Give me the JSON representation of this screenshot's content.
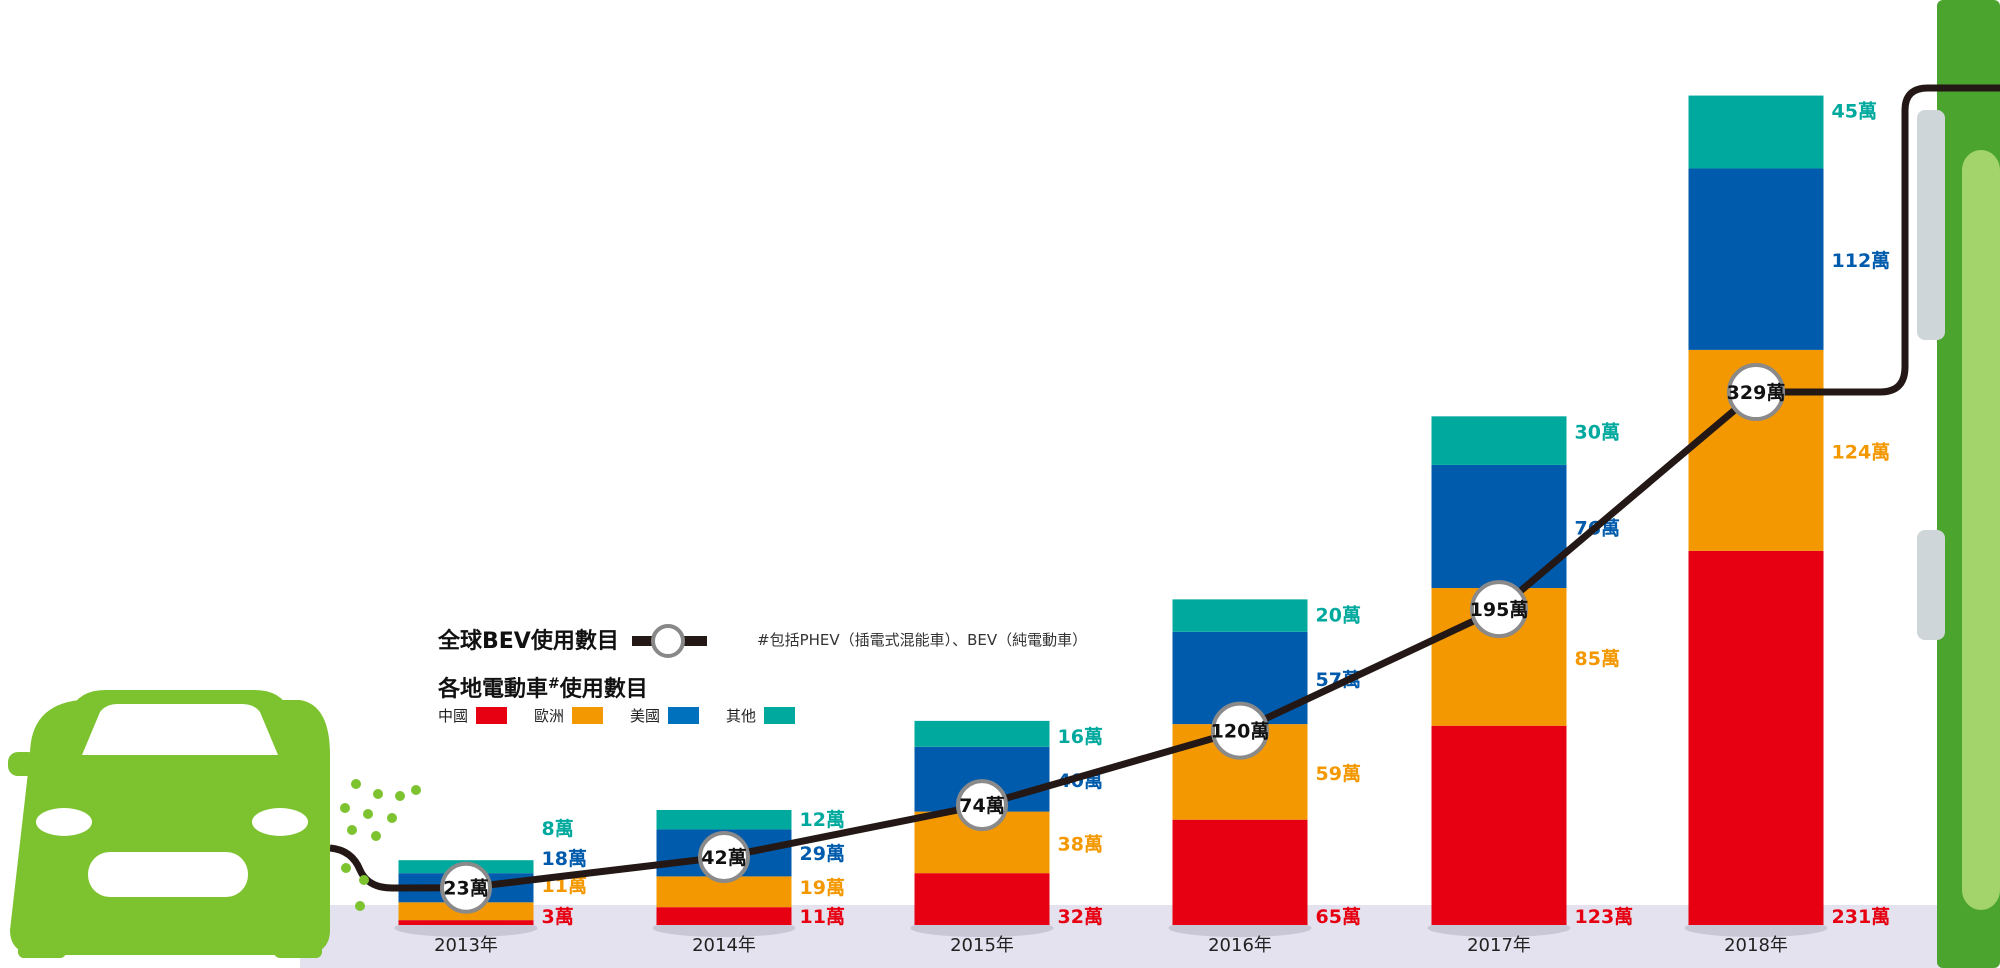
{
  "legend": {
    "bev_title": "全球BEV使用數目",
    "ev_title": "各地電動車",
    "ev_title_sup": "#",
    "ev_title_suffix": "使用數目",
    "note": "#包括PHEV（插電式混能車）、BEV（純電動車）",
    "items": [
      {
        "label": "中國",
        "color": "#e60012"
      },
      {
        "label": "歐洲",
        "color": "#f39800"
      },
      {
        "label": "美國",
        "color": "#0071bc"
      },
      {
        "label": "其他",
        "color": "#00a99d"
      }
    ]
  },
  "colors": {
    "china": "#e60012",
    "europe": "#f39800",
    "usa": "#005bac",
    "other": "#00a99d",
    "line": "#231815",
    "ground": "#e4e2ee",
    "car": "#7dc22f",
    "charger": "#4aa42d"
  },
  "icons": [
    "car-icon",
    "charger-icon"
  ],
  "chart_data": {
    "type": "bar",
    "stacked": true,
    "unit": "萬",
    "categories": [
      "2013年",
      "2014年",
      "2015年",
      "2016年",
      "2017年",
      "2018年"
    ],
    "series": [
      {
        "name": "中國",
        "values": [
          3,
          11,
          32,
          65,
          123,
          231
        ],
        "labels": [
          "3萬",
          "11萬",
          "32萬",
          "65萬",
          "123萬",
          "231萬"
        ]
      },
      {
        "name": "歐洲",
        "values": [
          11,
          19,
          38,
          59,
          85,
          124
        ],
        "labels": [
          "11萬",
          "19萬",
          "38萬",
          "59萬",
          "85萬",
          "124萬"
        ]
      },
      {
        "name": "美國",
        "values": [
          18,
          29,
          40,
          57,
          76,
          112
        ],
        "labels": [
          "18萬",
          "29萬",
          "40萬",
          "57萬",
          "76萬",
          "112萬"
        ]
      },
      {
        "name": "其他",
        "values": [
          8,
          12,
          16,
          20,
          30,
          45
        ],
        "labels": [
          "8萬",
          "12萬",
          "16萬",
          "20萬",
          "30萬",
          "45萬"
        ]
      }
    ],
    "line_series": {
      "name": "全球BEV使用數目",
      "values": [
        23,
        42,
        74,
        120,
        195,
        329
      ],
      "labels": [
        "23萬",
        "42萬",
        "74萬",
        "120萬",
        "195萬",
        "329萬"
      ]
    },
    "ylim": [
      0,
      512
    ],
    "grid": false,
    "legend_position": "center-left"
  }
}
